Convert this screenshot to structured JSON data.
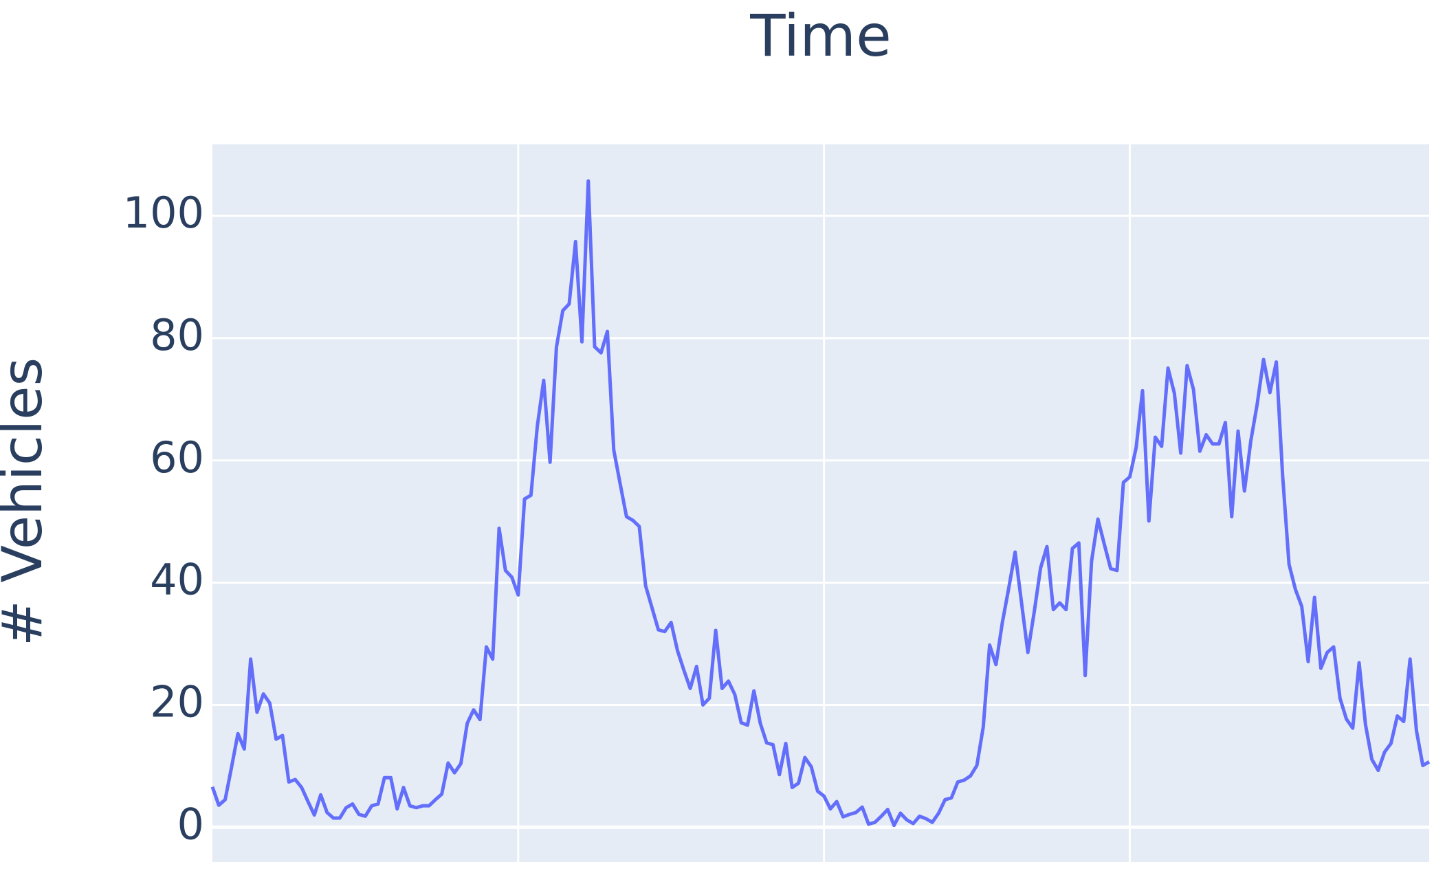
{
  "chart_data": {
    "type": "line",
    "title": "Time",
    "y_label": "# Vehicles",
    "series": [
      {
        "color": "#636efa",
        "values": [
          6.6,
          3.6,
          4.5,
          9.8,
          15.3,
          12.8,
          27.5,
          18.8,
          21.8,
          20.3,
          14.4,
          15,
          7.4,
          7.8,
          6.5,
          4.2,
          2,
          5.3,
          2.4,
          1.5,
          1.5,
          3.2,
          3.8,
          2.1,
          1.8,
          3.5,
          3.8,
          8.1,
          8.1,
          3,
          6.5,
          3.5,
          3.2,
          3.5,
          3.5,
          4.5,
          5.4,
          10.5,
          8.9,
          10.4,
          17,
          19.2,
          17.6,
          29.5,
          27.5,
          48.9,
          42,
          40.9,
          38,
          53.7,
          54.3,
          65.6,
          73.1,
          59.7,
          78.5,
          84.5,
          85.6,
          95.8,
          79.4,
          105.7,
          78.6,
          77.6,
          81.1,
          61.7,
          56.2,
          50.8,
          50.2,
          49.2,
          39.5,
          35.9,
          32.3,
          32,
          33.5,
          28.9,
          25.7,
          22.7,
          26.3,
          20,
          21.1,
          32.2,
          22.7,
          23.9,
          21.7,
          17.1,
          16.7,
          22.3,
          17,
          13.8,
          13.5,
          8.6,
          13.7,
          6.5,
          7.2,
          11.4,
          9.9,
          5.9,
          5.1,
          3,
          4.2,
          1.7,
          2.1,
          2.4,
          3.3,
          0.5,
          0.8,
          1.8,
          2.9,
          0.3,
          2.3,
          1.2,
          0.6,
          1.8,
          1.4,
          0.8,
          2.3,
          4.5,
          4.8,
          7.4,
          7.7,
          8.4,
          10.1,
          16.4,
          29.8,
          26.6,
          33.5,
          39.1,
          45,
          36.8,
          28.6,
          35.2,
          42.4,
          45.9,
          35.6,
          36.7,
          35.6,
          45.6,
          46.5,
          24.8,
          43.5,
          50.4,
          46.3,
          42.3,
          42,
          56.4,
          57.3,
          62.1,
          71.4,
          50.1,
          63.8,
          62.3,
          75.1,
          71,
          61.2,
          75.5,
          71.6,
          61.5,
          64.2,
          62.7,
          62.7,
          66.2,
          50.8,
          64.8,
          55,
          63.2,
          69.2,
          76.5,
          71.1,
          76.1,
          57.4,
          43,
          38.9,
          36.1,
          27.1,
          37.6,
          26,
          28.6,
          29.5,
          21.1,
          17.7,
          16.2,
          26.9,
          16.8,
          11.1,
          9.3,
          12.3,
          13.7,
          18.2,
          17.3,
          27.5,
          15.8,
          10.1,
          10.7
        ]
      }
    ],
    "xlim": [
      0,
      191
    ],
    "xticks": [
      48,
      96,
      144
    ],
    "ylim": [
      -5.7,
      111.7
    ],
    "yticks": [
      0,
      20,
      40,
      60,
      80,
      100
    ],
    "grid": true
  }
}
